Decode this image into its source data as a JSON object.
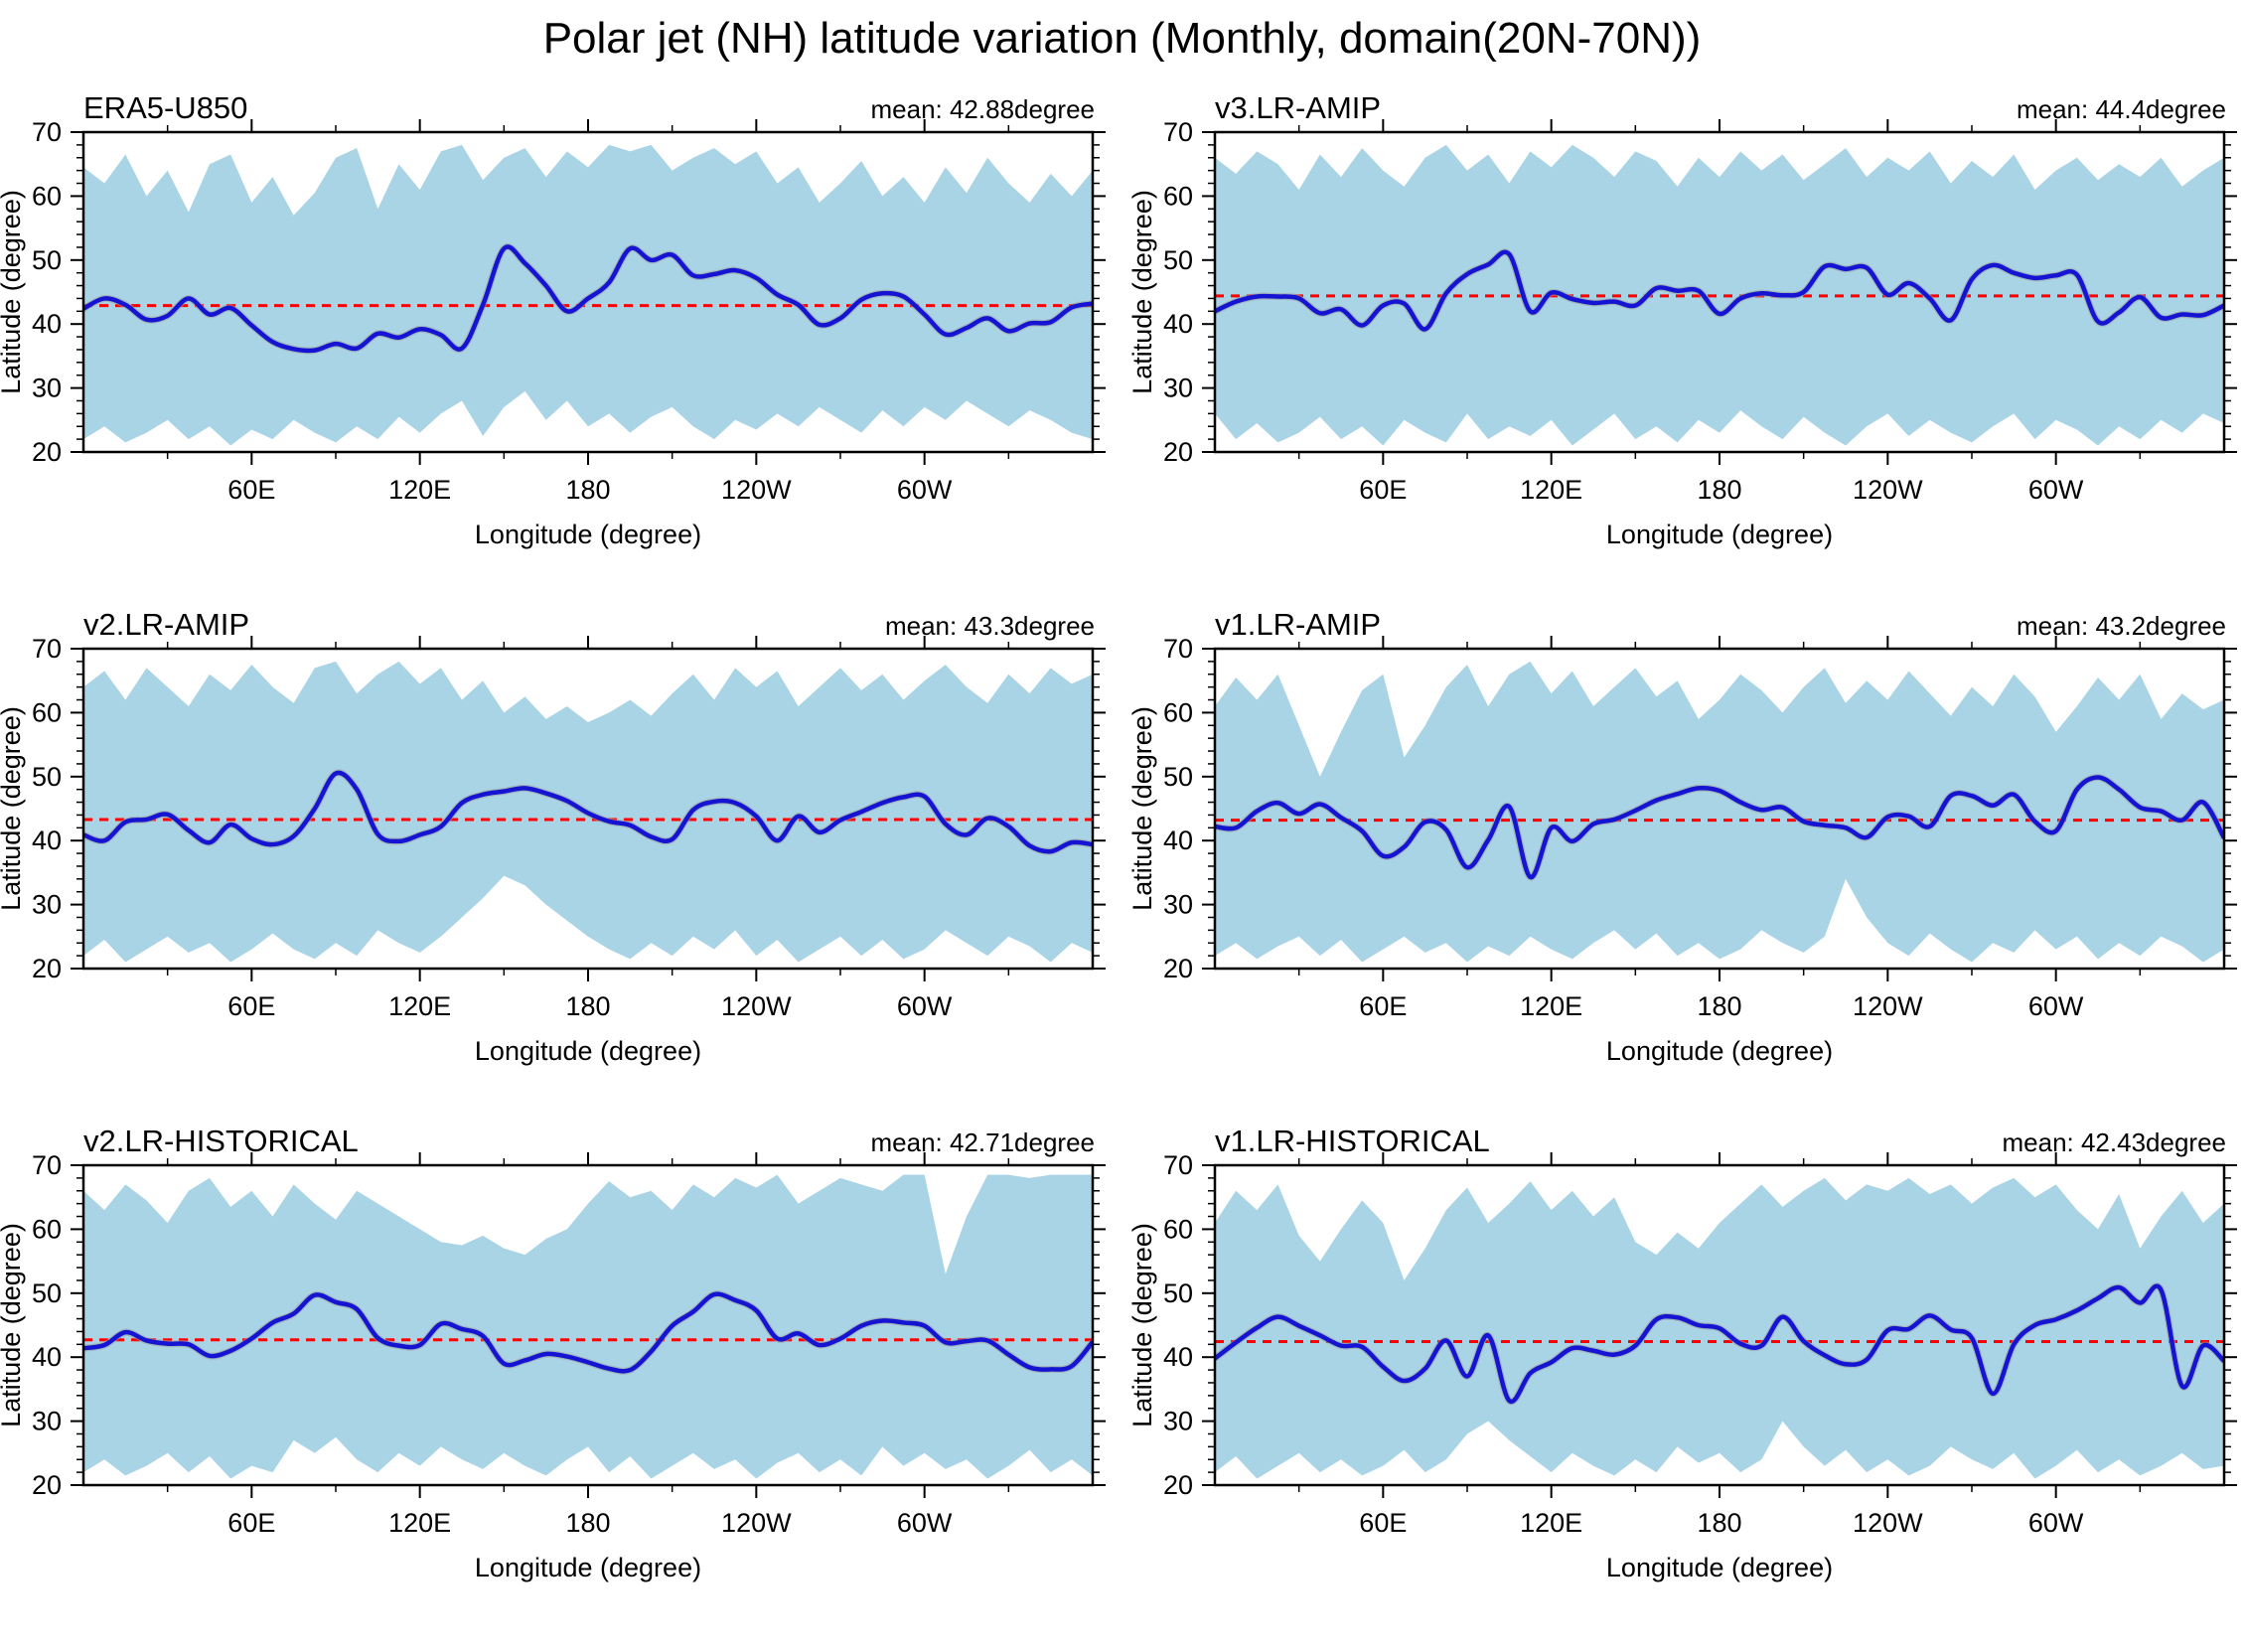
{
  "title": "Polar jet (NH) latitude variation (Monthly, domain(20N-70N))",
  "style": {
    "envelope_color": "#a9d4e5",
    "jet_line_color": "#1414d2",
    "jet_halo_color": "#9a9a9a",
    "mean_line_color": "#ff0000",
    "axis_color": "#000000",
    "text_color": "#000000",
    "background": "#ffffff"
  },
  "axes": {
    "ylabel": "Latitude (degree)",
    "xlabel": "Longitude (degree)",
    "ylim": [
      20,
      70
    ],
    "ytick_major": [
      20,
      30,
      40,
      50,
      60,
      70
    ],
    "ytick_minor_step": 2,
    "lon_range": [
      0,
      360
    ],
    "xtick_major_lons": [
      60,
      120,
      180,
      240,
      300
    ],
    "xtick_labels": [
      "60E",
      "120E",
      "180",
      "120W",
      "60W"
    ],
    "xtick_minor_lons": [
      30,
      90,
      150,
      210,
      270,
      330
    ]
  },
  "chart_data": [
    {
      "type": "line",
      "title": "ERA5-U850",
      "mean_label": "mean: 42.88degree",
      "mean_value": 42.88,
      "lon_step": 7.5,
      "jet_lat": [
        42.4,
        44.0,
        43.0,
        40.7,
        41.3,
        44.0,
        41.5,
        42.5,
        39.8,
        37.2,
        36.1,
        35.9,
        36.9,
        36.2,
        38.5,
        37.9,
        39.2,
        38.3,
        36.2,
        43.0,
        51.8,
        49.5,
        46.0,
        42.0,
        44.0,
        46.5,
        51.8,
        50.0,
        50.8,
        47.6,
        47.8,
        48.4,
        47.2,
        44.6,
        43.0,
        39.9,
        40.9,
        43.8,
        44.8,
        44.3,
        41.5,
        38.4,
        39.4,
        40.9,
        38.9,
        40.1,
        40.3,
        42.6,
        43.2
      ],
      "env_top": [
        64.5,
        62,
        66.5,
        60,
        64,
        57.5,
        65,
        66.5,
        59,
        63,
        57,
        60.5,
        66,
        67.5,
        58,
        65,
        61,
        67,
        68,
        62.5,
        66,
        67.5,
        63,
        67,
        64.5,
        68,
        67,
        68,
        64,
        66,
        67.5,
        65,
        67,
        62,
        64.5,
        59,
        62,
        65.5,
        60,
        63,
        59,
        64.5,
        60.5,
        66,
        62,
        59,
        63.5,
        60,
        64
      ],
      "env_bot": [
        22,
        24,
        21.5,
        23,
        25,
        22,
        24,
        21,
        23.5,
        22,
        25,
        23,
        21.5,
        24,
        22,
        25.5,
        23,
        26,
        28,
        22.5,
        27,
        29.5,
        25,
        28,
        24,
        26,
        23,
        25.5,
        27,
        24,
        22,
        25,
        23.5,
        26,
        24,
        27,
        25,
        23,
        26.5,
        24,
        27,
        25,
        28,
        26,
        24,
        26.5,
        25,
        23,
        22
      ]
    },
    {
      "type": "line",
      "title": "v3.LR-AMIP",
      "mean_label": "mean: 44.4degree",
      "mean_value": 44.4,
      "lon_step": 7.5,
      "jet_lat": [
        42.0,
        43.5,
        44.3,
        44.3,
        44.0,
        41.7,
        42.3,
        39.8,
        42.9,
        43.2,
        39.2,
        44.8,
        47.8,
        49.3,
        50.9,
        42.0,
        44.9,
        43.9,
        43.3,
        43.5,
        42.9,
        45.6,
        45.2,
        45.2,
        41.6,
        44.0,
        44.8,
        44.5,
        45.0,
        49.0,
        48.6,
        48.8,
        44.6,
        46.4,
        44.0,
        40.6,
        47.0,
        49.2,
        48.0,
        47.2,
        47.6,
        47.7,
        40.4,
        41.8,
        44.2,
        41.0,
        41.5,
        41.4,
        42.9
      ],
      "env_top": [
        66,
        63.5,
        67,
        65,
        61,
        66.5,
        63,
        67.5,
        64,
        61.5,
        66,
        68,
        64,
        66.5,
        62,
        67,
        64.5,
        68,
        66,
        63,
        67,
        65.5,
        61.5,
        66,
        63,
        67,
        64,
        66.5,
        62.5,
        65,
        67.5,
        63,
        66,
        64,
        67,
        62,
        65.5,
        63,
        66.5,
        61,
        64,
        66,
        62.5,
        65,
        63,
        66,
        61.5,
        64,
        66
      ],
      "env_bot": [
        26,
        22,
        24.5,
        21.5,
        23,
        25.5,
        22,
        24,
        21,
        25,
        23,
        21.5,
        26,
        22,
        24,
        22.5,
        25,
        21,
        23.5,
        26,
        22,
        24,
        21.5,
        25,
        23,
        26.5,
        24,
        22,
        25.5,
        23,
        21,
        24,
        26,
        22.5,
        25,
        23,
        21.5,
        24,
        26,
        22,
        25,
        23.5,
        21,
        24,
        22,
        25,
        23,
        26,
        24.5
      ]
    },
    {
      "type": "line",
      "title": "v2.LR-AMIP",
      "mean_label": "mean: 43.3degree",
      "mean_value": 43.3,
      "lon_step": 7.5,
      "jet_lat": [
        40.9,
        40.0,
        42.9,
        43.3,
        44.1,
        41.6,
        39.7,
        42.5,
        40.3,
        39.4,
        40.7,
        45.0,
        50.5,
        48.0,
        41.0,
        39.9,
        40.9,
        42.2,
        45.9,
        47.2,
        47.7,
        48.2,
        47.4,
        46.2,
        44.3,
        43.0,
        42.4,
        40.6,
        40.2,
        44.8,
        46.1,
        45.9,
        43.8,
        40.0,
        43.8,
        41.3,
        43.2,
        44.5,
        45.9,
        46.8,
        46.9,
        42.6,
        40.9,
        43.5,
        42.2,
        39.2,
        38.3,
        39.7,
        39.4
      ],
      "env_top": [
        64,
        66.5,
        62,
        67,
        64,
        61,
        66,
        63.5,
        67.5,
        64,
        61.5,
        67,
        68,
        63,
        66,
        68,
        64.5,
        67,
        62,
        65,
        60,
        62.5,
        59,
        61,
        58.5,
        60,
        62,
        59.5,
        63,
        66,
        62,
        67,
        64,
        66.5,
        61,
        64,
        67,
        63.5,
        66,
        62,
        65,
        67.5,
        64,
        61.5,
        66,
        63,
        67,
        64.5,
        66
      ],
      "env_bot": [
        22,
        24.5,
        21,
        23,
        25,
        22.5,
        24,
        21,
        23,
        25.5,
        23,
        21.5,
        24,
        22,
        26,
        24,
        22.5,
        25,
        28,
        31,
        34.5,
        33,
        30,
        27.5,
        25,
        23,
        21.5,
        24,
        22,
        25,
        23,
        26,
        22,
        24.5,
        21,
        23,
        25,
        22,
        24.5,
        21.5,
        23,
        26,
        24,
        22,
        25,
        23.5,
        21,
        24,
        22.5
      ]
    },
    {
      "type": "line",
      "title": "v1.LR-AMIP",
      "mean_label": "mean: 43.2degree",
      "mean_value": 43.2,
      "lon_step": 7.5,
      "jet_lat": [
        42.2,
        42.0,
        44.6,
        45.9,
        44.2,
        45.7,
        43.6,
        41.5,
        37.6,
        39.0,
        42.9,
        41.7,
        35.8,
        40.1,
        45.3,
        34.3,
        42.0,
        39.9,
        42.6,
        43.3,
        44.7,
        46.3,
        47.3,
        48.2,
        47.8,
        46.0,
        44.8,
        45.2,
        43.0,
        42.4,
        42.0,
        40.5,
        43.7,
        43.8,
        42.2,
        47.0,
        47.0,
        45.5,
        47.2,
        43.0,
        41.5,
        48.0,
        49.9,
        48.0,
        45.2,
        44.6,
        43.2,
        46.0,
        40.4
      ],
      "env_top": [
        61,
        65.5,
        62,
        66,
        58,
        50,
        57,
        63.5,
        66,
        53,
        58,
        64,
        67.5,
        61,
        66,
        68,
        63,
        66.5,
        61,
        64,
        67,
        62.5,
        65,
        59,
        62,
        66,
        63.5,
        60,
        64,
        67,
        61.5,
        65,
        62,
        66.5,
        63,
        59.5,
        64,
        61,
        66,
        62.5,
        57,
        61,
        65.5,
        62,
        66,
        59,
        63,
        60.5,
        62
      ],
      "env_bot": [
        22,
        24,
        21.5,
        23.5,
        25,
        22,
        24.5,
        21,
        23,
        25,
        22.5,
        24,
        21,
        23.5,
        22,
        25,
        23,
        21.5,
        24,
        26,
        23,
        25.5,
        22,
        24,
        21.5,
        23,
        26,
        24,
        22.5,
        25,
        34,
        28,
        24,
        22,
        25.5,
        23,
        21,
        24,
        22.5,
        26,
        23,
        25,
        21.5,
        24,
        22,
        25,
        23.5,
        21,
        23
      ]
    },
    {
      "type": "line",
      "title": "v2.LR-HISTORICAL",
      "mean_label": "mean: 42.71degree",
      "mean_value": 42.71,
      "lon_step": 7.5,
      "jet_lat": [
        41.4,
        41.9,
        43.9,
        42.6,
        42.1,
        42.0,
        40.2,
        41.0,
        42.9,
        45.4,
        46.8,
        49.7,
        48.6,
        47.5,
        43.0,
        41.8,
        41.9,
        45.2,
        44.4,
        43.3,
        39.0,
        39.5,
        40.5,
        40.1,
        39.2,
        38.2,
        38.0,
        40.9,
        44.9,
        47.1,
        49.8,
        48.9,
        47.3,
        42.9,
        43.7,
        41.9,
        42.9,
        44.9,
        45.7,
        45.4,
        44.9,
        42.3,
        42.5,
        42.6,
        40.4,
        38.4,
        38.1,
        38.6,
        42.4
      ],
      "env_top": [
        66,
        63,
        67,
        64.5,
        61,
        66,
        68,
        63.5,
        66,
        62,
        67,
        64,
        61.5,
        66,
        64,
        62,
        60,
        58,
        57.5,
        59,
        57,
        56,
        58.5,
        60,
        64,
        67.5,
        65,
        66,
        63,
        67,
        65,
        68,
        66.5,
        68.5,
        64,
        66,
        68,
        67,
        66,
        68.5,
        68.5,
        53,
        62,
        68.5,
        68.5,
        68,
        68.5,
        68.5,
        68.5
      ],
      "env_bot": [
        22,
        24,
        21.5,
        23,
        25,
        22,
        24.5,
        21,
        23,
        22,
        27,
        25,
        27.5,
        24,
        22,
        25,
        23,
        26,
        24,
        22.5,
        25,
        23,
        21.5,
        24,
        26,
        22,
        24.5,
        21,
        23,
        25,
        22.5,
        24,
        21,
        23.5,
        25,
        22,
        24,
        21.5,
        26,
        23,
        25,
        22.5,
        24,
        21,
        23,
        25.5,
        22,
        24,
        21.5
      ]
    },
    {
      "type": "line",
      "title": "v1.LR-HISTORICAL",
      "mean_label": "mean: 42.43degree",
      "mean_value": 42.43,
      "lon_step": 7.5,
      "jet_lat": [
        39.8,
        42.3,
        44.6,
        46.3,
        44.9,
        43.4,
        41.8,
        41.6,
        38.5,
        36.3,
        38.2,
        42.6,
        37.0,
        43.4,
        33.2,
        37.5,
        39.2,
        41.4,
        41.0,
        40.4,
        41.8,
        45.9,
        46.2,
        45.0,
        44.5,
        42.1,
        41.8,
        46.3,
        42.5,
        40.3,
        38.9,
        39.6,
        44.2,
        44.4,
        46.5,
        44.3,
        43.0,
        34.3,
        42.0,
        45.0,
        45.9,
        47.3,
        49.2,
        50.9,
        48.5,
        50.5,
        35.5,
        41.8,
        39.4
      ],
      "env_top": [
        61,
        66,
        63,
        67,
        59,
        55,
        60,
        64.5,
        61,
        52,
        57,
        63,
        66.5,
        61,
        64,
        67.5,
        63,
        66,
        62,
        65,
        58,
        56,
        59.5,
        57,
        61,
        64,
        67,
        63.5,
        66,
        68,
        64.5,
        67,
        66,
        68,
        65.5,
        67,
        64,
        66.5,
        68,
        65,
        67,
        63,
        60,
        65.5,
        57,
        62,
        66,
        61,
        64
      ],
      "env_bot": [
        22,
        24.5,
        21,
        23,
        25,
        22,
        24,
        21.5,
        23,
        25.5,
        22,
        24,
        28,
        30,
        27,
        24.5,
        22,
        25,
        23,
        21.5,
        24,
        22,
        26,
        23.5,
        25,
        22,
        24,
        30,
        26,
        23,
        25.5,
        22,
        24,
        21.5,
        23,
        26,
        24,
        22.5,
        25,
        21,
        23,
        25.5,
        22,
        24,
        21.5,
        23,
        25,
        22.5,
        23
      ]
    }
  ]
}
